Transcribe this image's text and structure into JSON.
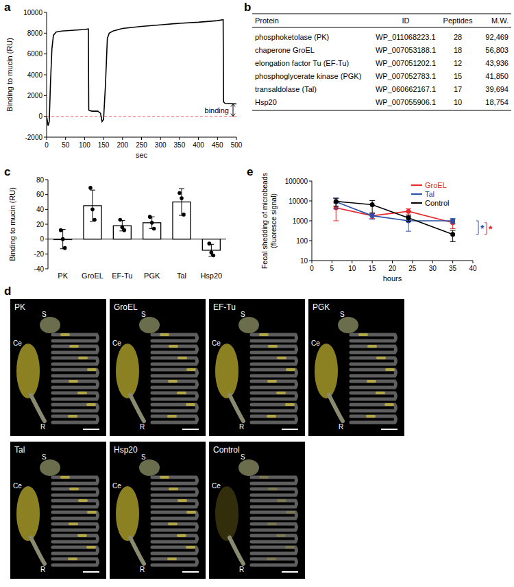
{
  "panel_labels": [
    "a",
    "b",
    "c",
    "d",
    "e"
  ],
  "chart_data": [
    {
      "type": "line",
      "x_label": "sec",
      "y_label": "Binding to mucin (RU)",
      "color": "#000000",
      "x": [
        0,
        4,
        7,
        10,
        14,
        18,
        25,
        40,
        60,
        80,
        100,
        110,
        111,
        113,
        120,
        135,
        142,
        146,
        150,
        155,
        160,
        165,
        175,
        200,
        250,
        300,
        350,
        400,
        450,
        465,
        466,
        470,
        500
      ],
      "values": [
        0,
        -900,
        -500,
        3000,
        6500,
        7800,
        8100,
        8200,
        8250,
        8300,
        8350,
        8400,
        600,
        550,
        500,
        500,
        300,
        -500,
        -300,
        3000,
        7500,
        8000,
        8200,
        8450,
        8650,
        8800,
        8950,
        9050,
        9200,
        9300,
        1400,
        1250,
        1200
      ],
      "xlim": [
        0,
        500
      ],
      "xticks": [
        0,
        50,
        100,
        150,
        200,
        250,
        300,
        350,
        400,
        450,
        500
      ],
      "ylim": [
        -2000,
        10000
      ],
      "yticks": [
        -2000,
        0,
        2000,
        4000,
        6000,
        8000,
        10000
      ],
      "reference_line": {
        "value": 0,
        "color": "#ff6b6b",
        "line_style": "dashed"
      },
      "annotation": {
        "text": "binding"
      }
    },
    {
      "type": "bar",
      "y_label": "Binding to mucin (RU)",
      "color": "#ffffff",
      "categories": [
        "PK",
        "GroEL",
        "EF-Tu",
        "PGK",
        "Tal",
        "Hsp20"
      ],
      "values": [
        0,
        45,
        18,
        22,
        50,
        -15
      ],
      "errors": [
        13,
        21,
        7,
        8,
        18,
        8
      ],
      "points": [
        [
          12,
          0,
          -12
        ],
        [
          69,
          40,
          26
        ],
        [
          26,
          16,
          12
        ],
        [
          30,
          22,
          14
        ],
        [
          62,
          55,
          33
        ],
        [
          -6,
          -18,
          -22
        ]
      ],
      "ylim": [
        -40,
        80
      ],
      "yticks": [
        -40,
        -20,
        0,
        20,
        40,
        60,
        80
      ]
    },
    {
      "type": "line",
      "log": "y",
      "x_label": "hours",
      "y_label": [
        "Fecal shedding of microbeads",
        "(fluoresce signal)"
      ],
      "x": [
        6,
        15,
        24,
        35
      ],
      "series": [
        {
          "name": "GroEL",
          "color": "#e8262b",
          "marker": "circle",
          "values": [
            4500,
            1800,
            3000,
            800
          ],
          "errors": [
            3500,
            500,
            1000,
            400
          ]
        },
        {
          "name": "Tal",
          "color": "#2a4fa8",
          "marker": "circle",
          "values": [
            9000,
            1800,
            1000,
            1000
          ],
          "errors": [
            5000,
            600,
            700,
            300
          ]
        },
        {
          "name": "Control",
          "color": "#000000",
          "marker": "circle",
          "values": [
            9500,
            6500,
            1400,
            210
          ],
          "errors": [
            4000,
            4000,
            500,
            120
          ]
        }
      ],
      "xlim": [
        0,
        40
      ],
      "xticks": [
        0,
        5,
        10,
        15,
        20,
        25,
        30,
        35,
        40
      ],
      "ylim": [
        10,
        100000
      ],
      "yticks": [
        10,
        100,
        1000,
        10000,
        100000
      ],
      "legend": "upper right",
      "annotations": [
        {
          "text": "*",
          "color": "#e8262b",
          "series": [
            "GroEL",
            "Control"
          ]
        },
        {
          "text": "*",
          "color": "#2a4fa8",
          "series": [
            "Tal",
            "Control"
          ]
        }
      ]
    }
  ],
  "table": {
    "header": [
      "Protein",
      "ID",
      "Peptides",
      "M.W."
    ],
    "rows": [
      [
        "phosphoketolase (PK)",
        "WP_011068223.1",
        "28",
        "92,469"
      ],
      [
        "chaperone GroEL",
        "WP_007053188.1",
        "18",
        "56,803"
      ],
      [
        "elongation factor Tu (EF-Tu)",
        "WP_007051202.1",
        "12",
        "43,936"
      ],
      [
        "phosphoglycerate kinase (PGK)",
        "WP_007052783.1",
        "15",
        "41,850"
      ],
      [
        "transaldolase (Tal)",
        "WP_060662167.1",
        "17",
        "39,694"
      ],
      [
        "Hsp20",
        "WP_007055906.1",
        "10",
        "18,754"
      ]
    ]
  },
  "images": {
    "panels": [
      {
        "title": "PK",
        "labels": [
          "S",
          "Ce",
          "R"
        ]
      },
      {
        "title": "GroEL",
        "labels": [
          "S",
          "Ce",
          "R"
        ]
      },
      {
        "title": "EF-Tu",
        "labels": [
          "S",
          "Ce",
          "R"
        ]
      },
      {
        "title": "PGK",
        "labels": [
          "S",
          "Ce",
          "R"
        ]
      },
      {
        "title": "Tal",
        "labels": [
          "S",
          "Ce",
          "R"
        ]
      },
      {
        "title": "Hsp20",
        "labels": [
          "S",
          "Ce",
          "R"
        ]
      },
      {
        "title": "Control",
        "labels": [
          "S",
          "Ce",
          "R"
        ]
      }
    ]
  }
}
